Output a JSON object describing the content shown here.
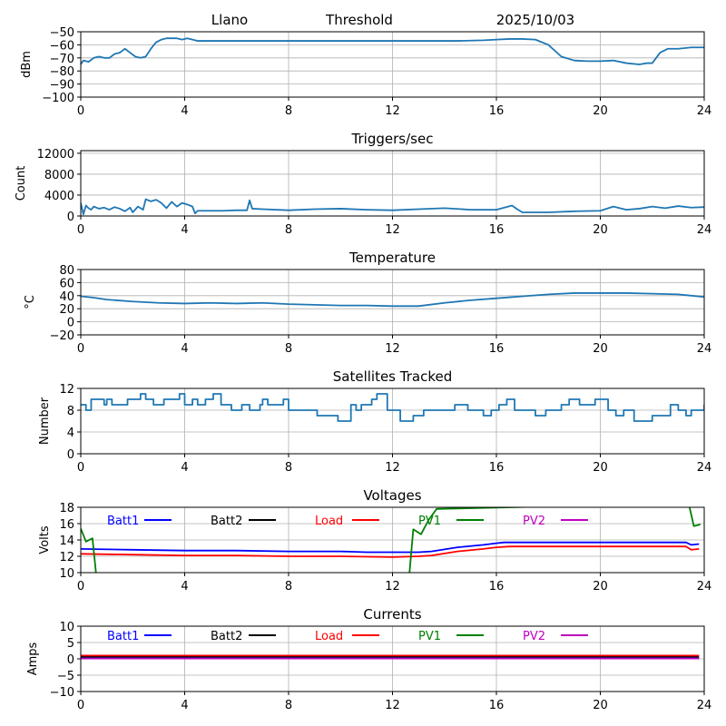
{
  "header": {
    "station": "Llano",
    "mode": "Threshold",
    "date": "2025/10/03"
  },
  "chart_data": [
    {
      "id": "signal",
      "type": "line",
      "title": "",
      "xlabel": "",
      "ylabel": "dBm",
      "xlim": [
        0,
        24
      ],
      "ylim": [
        -100,
        -50
      ],
      "xticks": [
        0,
        4,
        8,
        12,
        16,
        20,
        24
      ],
      "yticks": [
        -50,
        -60,
        -70,
        -80,
        -90,
        -100
      ],
      "ytick_labels": [
        "−50",
        "−60",
        "−70",
        "−80",
        "−90",
        "−100"
      ],
      "grid": true,
      "series": [
        {
          "name": "signal",
          "color": "#1f77b4",
          "x": [
            0,
            0.1,
            0.3,
            0.5,
            0.7,
            0.9,
            1.1,
            1.3,
            1.5,
            1.7,
            1.9,
            2.1,
            2.3,
            2.5,
            2.7,
            2.9,
            3.1,
            3.3,
            3.5,
            3.7,
            3.9,
            4.1,
            4.3,
            4.5,
            5,
            6,
            8,
            10,
            12,
            13.5,
            14.5,
            15.5,
            16,
            16.5,
            17,
            17.5,
            18,
            18.5,
            19,
            19.5,
            20,
            20.5,
            21,
            21.5,
            21.8,
            22,
            22.3,
            22.6,
            23,
            23.5,
            24
          ],
          "y": [
            -75,
            -72,
            -73,
            -70,
            -69,
            -70,
            -70,
            -67,
            -66,
            -63,
            -66,
            -69,
            -70,
            -69,
            -63,
            -58,
            -56,
            -55,
            -55,
            -55,
            -56,
            -55,
            -56,
            -57,
            -57,
            -57,
            -57,
            -57,
            -57,
            -57,
            -57,
            -56.5,
            -56,
            -55.5,
            -55.5,
            -56,
            -60,
            -69,
            -72,
            -72.5,
            -72.5,
            -72,
            -74,
            -75,
            -74,
            -74,
            -66,
            -63,
            -63,
            -62,
            -62
          ]
        }
      ]
    },
    {
      "id": "triggers",
      "type": "line",
      "title": "Triggers/sec",
      "xlabel": "",
      "ylabel": "Count",
      "xlim": [
        0,
        24
      ],
      "ylim": [
        0,
        12500
      ],
      "xticks": [
        0,
        4,
        8,
        12,
        16,
        20,
        24
      ],
      "yticks": [
        0,
        4000,
        8000,
        12000
      ],
      "ytick_labels": [
        "0",
        "4000",
        "8000",
        "12000"
      ],
      "grid": true,
      "series": [
        {
          "name": "triggers",
          "color": "#1f77b4",
          "x": [
            0,
            0.1,
            0.2,
            0.3,
            0.4,
            0.5,
            0.7,
            0.9,
            1.1,
            1.3,
            1.5,
            1.7,
            1.9,
            2.0,
            2.2,
            2.4,
            2.5,
            2.7,
            2.9,
            3.1,
            3.3,
            3.5,
            3.7,
            3.9,
            4.1,
            4.3,
            4.4,
            4.5,
            5,
            5.5,
            6,
            6.4,
            6.5,
            6.6,
            7,
            8,
            9,
            10,
            11,
            12,
            13,
            14,
            15,
            16,
            16.6,
            16.8,
            17,
            18,
            19,
            20,
            20.5,
            21,
            21.5,
            22,
            22.5,
            23,
            23.5,
            24
          ],
          "y": [
            2500,
            300,
            2000,
            1500,
            1200,
            1800,
            1400,
            1600,
            1200,
            1700,
            1400,
            900,
            1600,
            700,
            1800,
            1200,
            3200,
            2800,
            3100,
            2500,
            1500,
            2700,
            1800,
            2500,
            2200,
            1800,
            500,
            1000,
            1000,
            1000,
            1100,
            1100,
            3000,
            1400,
            1300,
            1100,
            1300,
            1400,
            1200,
            1100,
            1300,
            1500,
            1200,
            1200,
            2000,
            1300,
            700,
            700,
            900,
            1000,
            1800,
            1200,
            1400,
            1800,
            1500,
            1900,
            1600,
            1700
          ]
        }
      ]
    },
    {
      "id": "temperature",
      "type": "line",
      "title": "Temperature",
      "xlabel": "",
      "ylabel": "°C",
      "xlim": [
        0,
        24
      ],
      "ylim": [
        -20,
        80
      ],
      "xticks": [
        0,
        4,
        8,
        12,
        16,
        20,
        24
      ],
      "yticks": [
        -20,
        0,
        20,
        40,
        60,
        80
      ],
      "ytick_labels": [
        "−20",
        "0",
        "20",
        "40",
        "60",
        "80"
      ],
      "grid": true,
      "series": [
        {
          "name": "temperature",
          "color": "#1f77b4",
          "x": [
            0,
            0.5,
            1,
            2,
            3,
            4,
            5,
            6,
            7,
            8,
            9,
            10,
            11,
            12,
            13,
            14,
            15,
            16,
            17,
            18,
            19,
            20,
            21,
            22,
            23,
            23.5,
            24
          ],
          "y": [
            39,
            37,
            34,
            31,
            29,
            28,
            29,
            28,
            29,
            27,
            26,
            25,
            25,
            24,
            24,
            29,
            33,
            36,
            39,
            42,
            44,
            44,
            44,
            43,
            42,
            40,
            38
          ]
        }
      ]
    },
    {
      "id": "satellites",
      "type": "line",
      "title": "Satellites Tracked",
      "xlabel": "",
      "ylabel": "Number",
      "xlim": [
        0,
        24
      ],
      "ylim": [
        0,
        12
      ],
      "xticks": [
        0,
        4,
        8,
        12,
        16,
        20,
        24
      ],
      "yticks": [
        0,
        4,
        8,
        12
      ],
      "ytick_labels": [
        "0",
        "4",
        "8",
        "12"
      ],
      "grid": true,
      "series": [
        {
          "name": "satellites",
          "color": "#1f77b4",
          "step": true,
          "x": [
            0,
            0.2,
            0.4,
            0.9,
            1.0,
            1.2,
            1.8,
            2.3,
            2.5,
            2.8,
            3.2,
            3.8,
            4.0,
            4.3,
            4.5,
            4.8,
            5.1,
            5.4,
            5.8,
            6.2,
            6.5,
            6.9,
            7.0,
            7.2,
            7.8,
            8.0,
            8.7,
            9.1,
            9.9,
            10.4,
            10.6,
            10.8,
            11.2,
            11.4,
            11.8,
            12.3,
            12.8,
            13.2,
            13.8,
            14.4,
            14.9,
            15.5,
            15.8,
            16.1,
            16.4,
            16.7,
            17.5,
            17.9,
            18.5,
            18.8,
            19.2,
            19.8,
            20.3,
            20.6,
            20.9,
            21.3,
            22.0,
            22.7,
            23.0,
            23.3,
            23.5,
            24
          ],
          "y": [
            9,
            8,
            10,
            9,
            10,
            9,
            10,
            11,
            10,
            9,
            10,
            11,
            9,
            10,
            9,
            10,
            11,
            9,
            8,
            9,
            8,
            9,
            10,
            9,
            10,
            8,
            8,
            7,
            6,
            9,
            8,
            9,
            10,
            11,
            8,
            6,
            7,
            8,
            8,
            9,
            8,
            7,
            8,
            9,
            10,
            8,
            7,
            8,
            9,
            10,
            9,
            10,
            8,
            7,
            8,
            6,
            7,
            9,
            8,
            7,
            8,
            9
          ]
        }
      ]
    },
    {
      "id": "voltages",
      "type": "line",
      "title": "Voltages",
      "xlabel": "",
      "ylabel": "Volts",
      "xlim": [
        0,
        24
      ],
      "ylim": [
        10,
        18
      ],
      "xticks": [
        0,
        4,
        8,
        12,
        16,
        20,
        24
      ],
      "yticks": [
        10,
        12,
        14,
        16,
        18
      ],
      "ytick_labels": [
        "10",
        "12",
        "14",
        "16",
        "18"
      ],
      "grid": true,
      "legend": "top-inline",
      "series": [
        {
          "name": "Batt1",
          "color": "#0000ff",
          "x": [
            0,
            2,
            4,
            6,
            8,
            10,
            11,
            12,
            13,
            13.5,
            14.5,
            15.5,
            16,
            16.3,
            18,
            20,
            22,
            23.3,
            23.5,
            23.8
          ],
          "y": [
            12.9,
            12.8,
            12.7,
            12.7,
            12.6,
            12.6,
            12.5,
            12.5,
            12.5,
            12.6,
            13.1,
            13.4,
            13.6,
            13.7,
            13.7,
            13.7,
            13.7,
            13.7,
            13.4,
            13.5
          ]
        },
        {
          "name": "Batt2",
          "color": "#000000",
          "x": [],
          "y": []
        },
        {
          "name": "Load",
          "color": "#ff0000",
          "x": [
            0,
            2,
            4,
            6,
            8,
            10,
            12,
            13,
            13.5,
            14.5,
            15.5,
            16,
            16.5,
            18,
            20,
            22,
            23.3,
            23.5,
            23.8
          ],
          "y": [
            12.3,
            12.2,
            12.1,
            12.1,
            12.0,
            12.0,
            11.9,
            12.0,
            12.1,
            12.6,
            12.9,
            13.1,
            13.2,
            13.2,
            13.2,
            13.2,
            13.2,
            12.8,
            12.9
          ]
        },
        {
          "name": "PV1",
          "color": "#008000",
          "x": [
            0,
            0.2,
            0.45,
            0.65,
            12.6,
            12.8,
            13.1,
            13.4,
            13.7,
            23.4,
            23.6,
            23.85
          ],
          "y": [
            15.4,
            13.8,
            14.2,
            8.0,
            8.0,
            15.3,
            14.7,
            16.5,
            17.8,
            18.5,
            15.7,
            15.9
          ]
        },
        {
          "name": "PV2",
          "color": "#bf00bf",
          "x": [],
          "y": []
        }
      ]
    },
    {
      "id": "currents",
      "type": "line",
      "title": "Currents",
      "xlabel": "",
      "ylabel": "Amps",
      "xlim": [
        0,
        24
      ],
      "ylim": [
        -10,
        10
      ],
      "xticks": [
        0,
        4,
        8,
        12,
        16,
        20,
        24
      ],
      "yticks": [
        -10,
        -5,
        0,
        5,
        10
      ],
      "ytick_labels": [
        "−10",
        "−5",
        "0",
        "5",
        "10"
      ],
      "grid": true,
      "legend": "top-inline",
      "series": [
        {
          "name": "Batt1",
          "color": "#0000ff",
          "x": [
            0,
            23.8
          ],
          "y": [
            0.3,
            0.3
          ]
        },
        {
          "name": "Batt2",
          "color": "#000000",
          "x": [
            0,
            23.8
          ],
          "y": [
            0.7,
            0.7
          ]
        },
        {
          "name": "Load",
          "color": "#ff0000",
          "x": [
            0,
            23.8
          ],
          "y": [
            1.0,
            1.0
          ]
        },
        {
          "name": "PV1",
          "color": "#008000",
          "x": [
            0,
            23.8
          ],
          "y": [
            0.1,
            0.1
          ]
        },
        {
          "name": "PV2",
          "color": "#bf00bf",
          "x": [
            0,
            23.8
          ],
          "y": [
            0.1,
            0.1
          ]
        }
      ]
    }
  ]
}
